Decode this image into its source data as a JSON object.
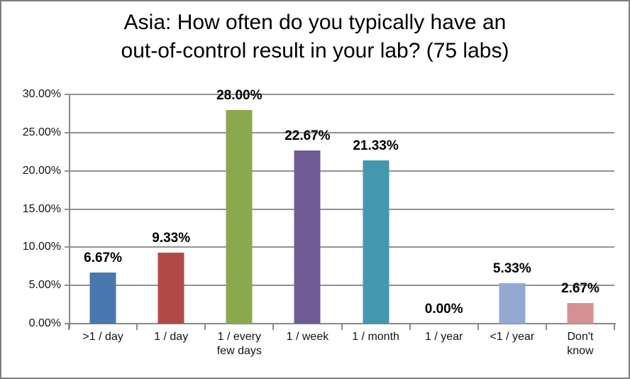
{
  "title": {
    "line1": "Asia: How often do you typically have an",
    "line2": "out-of-control result in your lab? (75 labs)"
  },
  "chart_data": {
    "type": "bar",
    "title": "Asia: How often do you typically have an out-of-control result in your lab? (75 labs)",
    "categories": [
      ">1 / day",
      "1 / day",
      "1 / every few days",
      "1 / week",
      "1 / month",
      "1 / year",
      "<1 / year",
      "Don't know"
    ],
    "category_labels": [
      ">1 / day",
      "1 / day",
      "1 / every\nfew days",
      "1 / week",
      "1 / month",
      "1 / year",
      "<1 / year",
      "Don't\nknow"
    ],
    "values": [
      6.67,
      9.33,
      28.0,
      22.67,
      21.33,
      0.0,
      5.33,
      2.67
    ],
    "data_labels": [
      "6.67%",
      "9.33%",
      "28.00%",
      "22.67%",
      "21.33%",
      "0.00%",
      "5.33%",
      "2.67%"
    ],
    "bar_colors": [
      "#4878AE",
      "#B04A47",
      "#8BA84E",
      "#6F5B93",
      "#4398AE",
      "#F79646",
      "#93A9D1",
      "#D49092"
    ],
    "ylim": [
      0,
      30
    ],
    "ytick_step": 5,
    "ytick_labels": [
      "0.00%",
      "5.00%",
      "10.00%",
      "15.00%",
      "20.00%",
      "25.00%",
      "30.00%"
    ],
    "xlabel": "",
    "ylabel": "",
    "grid": "horizontal",
    "legend": "none"
  },
  "colors": {
    "grid": "#919191",
    "axis": "#8A8A8A",
    "frame_border": "#7F7F7F",
    "background": "#FFFFFF",
    "title_text": "#000000",
    "tick_text": "#141414",
    "data_label_text": "#000000"
  }
}
